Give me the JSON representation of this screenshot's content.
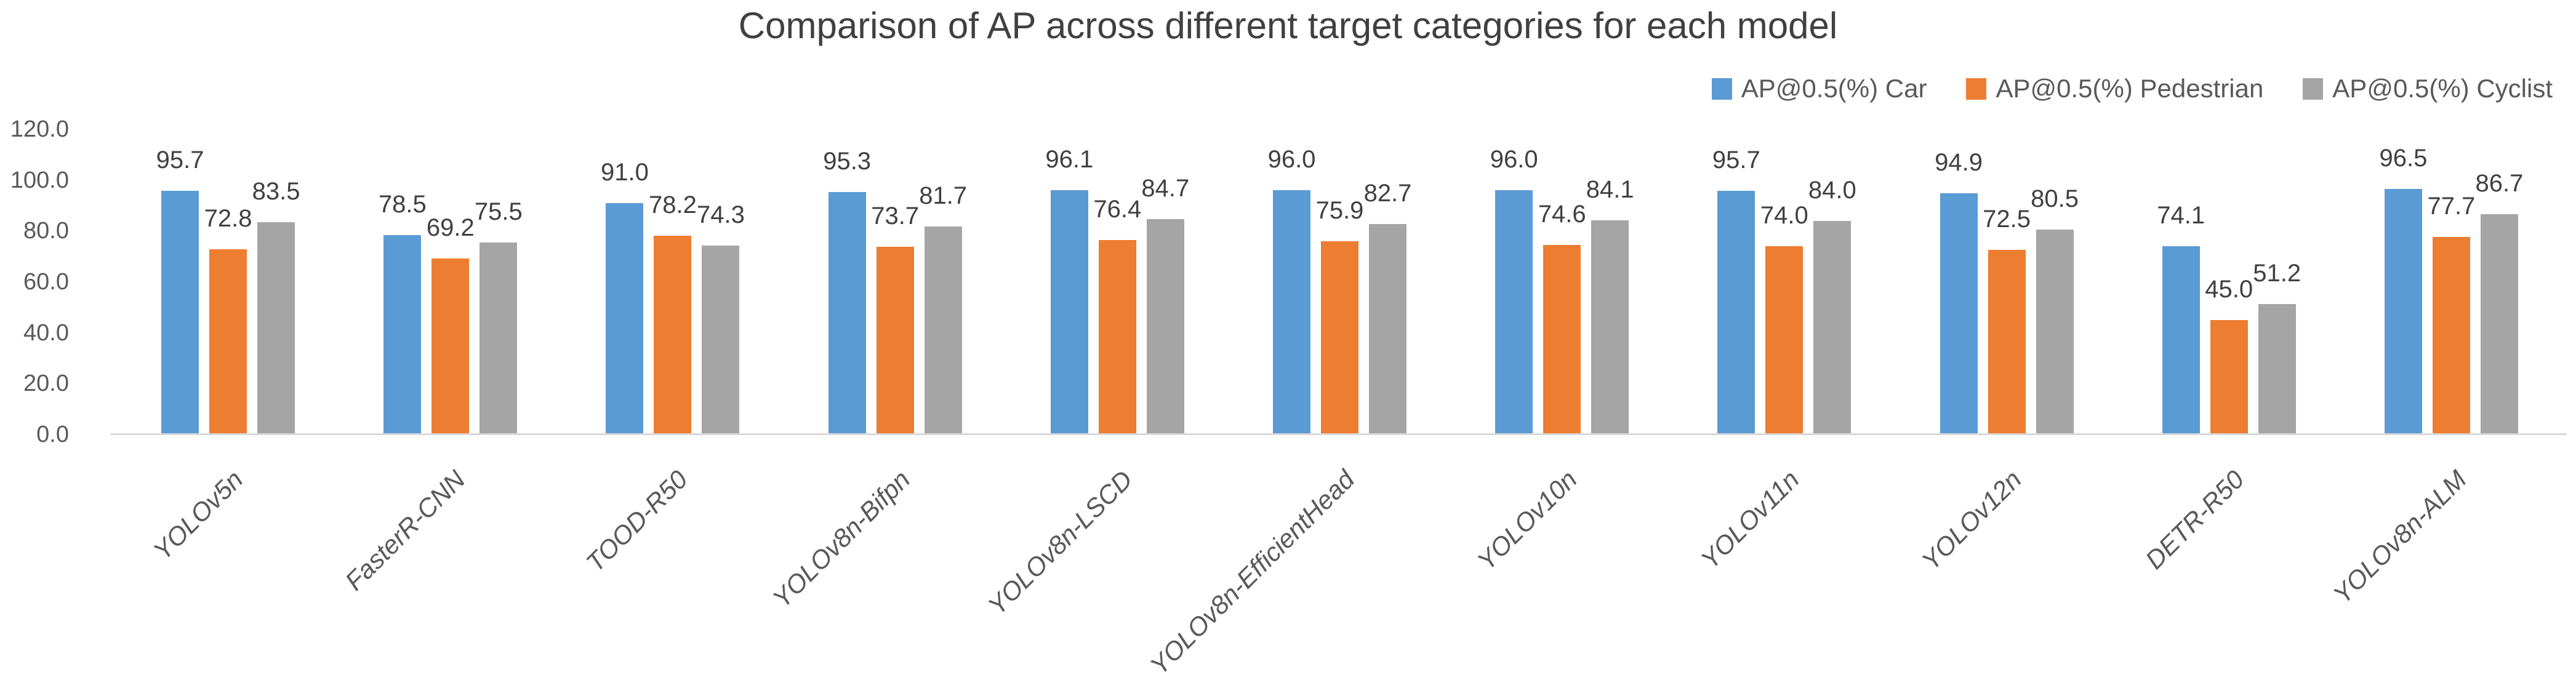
{
  "chart_data": {
    "type": "bar",
    "title": "Comparison of AP across different target categories for each model",
    "categories": [
      "YOLOv5n",
      "FasterR-CNN",
      "TOOD-R50",
      "YOLOv8n-Bifpn",
      "YOLOv8n-LSCD",
      "YOLOv8n-EfficientHead",
      "YOLOv10n",
      "YOLOv11n",
      "YOLOv12n",
      "DETR-R50",
      "YOLOv8n-ALM"
    ],
    "series": [
      {
        "name": "AP@0.5(%) Car",
        "color": "#5B9BD5",
        "values": [
          95.7,
          78.5,
          91.0,
          95.3,
          96.1,
          96.0,
          96.0,
          95.7,
          94.9,
          74.1,
          96.5
        ]
      },
      {
        "name": "AP@0.5(%) Pedestrian",
        "color": "#ED7D31",
        "values": [
          72.8,
          69.2,
          78.2,
          73.7,
          76.4,
          75.9,
          74.6,
          74.0,
          72.5,
          45.0,
          77.7
        ]
      },
      {
        "name": "AP@0.5(%) Cyclist",
        "color": "#A5A5A5",
        "values": [
          83.5,
          75.5,
          74.3,
          81.7,
          84.7,
          82.7,
          84.1,
          84.0,
          80.5,
          51.2,
          86.7
        ]
      }
    ],
    "xlabel": "",
    "ylabel": "",
    "ylim": [
      0,
      120
    ],
    "ytick_labels": [
      "0.0",
      "20.0",
      "40.0",
      "60.0",
      "80.0",
      "100.0",
      "120.0"
    ],
    "ytick_values": [
      0,
      20,
      40,
      60,
      80,
      100,
      120
    ],
    "grid": false,
    "legend_position": "top-right",
    "data_labels": "outside-end, one decimal",
    "text_colors": {
      "title": "#404040",
      "axis": "#595959",
      "value_labels": "#404040",
      "baseline": "#D9D9D9"
    }
  }
}
